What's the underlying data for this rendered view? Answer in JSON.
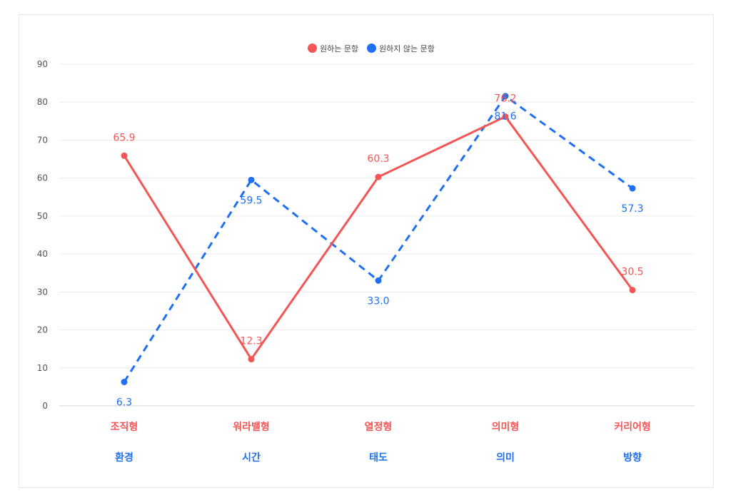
{
  "chart_data": {
    "type": "line",
    "title": "",
    "xlabel": "",
    "ylabel": "",
    "ylim": [
      0,
      90
    ],
    "yticks": [
      0,
      10,
      20,
      30,
      40,
      50,
      60,
      70,
      80,
      90
    ],
    "grid": true,
    "legend_position": "top-center",
    "categories": [
      "조직형",
      "워라밸형",
      "열정형",
      "의미형",
      "커리어형"
    ],
    "categories_secondary": [
      "환경",
      "시간",
      "태도",
      "의미",
      "방향"
    ],
    "series": [
      {
        "name": "원하는 문항",
        "values": [
          65.9,
          12.3,
          60.3,
          76.2,
          30.5
        ],
        "color": "#f45555",
        "style": "solid",
        "labels": [
          "65.9",
          "12.3",
          "60.3",
          "76.2",
          "30.5"
        ]
      },
      {
        "name": "원하지 않는 문항",
        "values": [
          6.3,
          59.5,
          33.0,
          81.6,
          57.3
        ],
        "color": "#1f6ff5",
        "style": "dashed",
        "labels": [
          "6.3",
          "59.5",
          "33.0",
          "81.6",
          "57.3"
        ]
      }
    ]
  }
}
